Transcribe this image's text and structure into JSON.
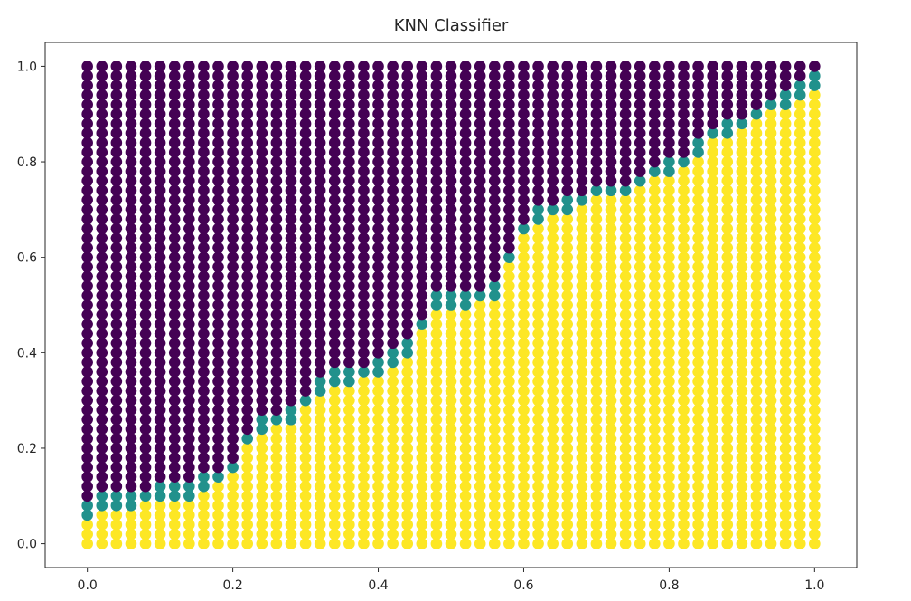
{
  "chart_data": {
    "type": "scatter",
    "title": "KNN Classifier",
    "xlabel": "",
    "ylabel": "",
    "xlim": [
      -0.058,
      1.058
    ],
    "ylim": [
      -0.05,
      1.05
    ],
    "xticks": [
      "0.0",
      "0.2",
      "0.4",
      "0.6",
      "0.8",
      "1.0"
    ],
    "yticks": [
      "0.0",
      "0.2",
      "0.4",
      "0.6",
      "0.8",
      "1.0"
    ],
    "grid": false,
    "legend": "none",
    "grid_points": {
      "x_start": 0.0,
      "x_end": 1.0,
      "x_count": 51,
      "y_start": 0.0,
      "y_end": 1.0,
      "y_count": 51
    },
    "class_colors": {
      "class_0": "#440154",
      "class_1": "#fde725",
      "boundary_blend": "#21918c"
    },
    "decision_boundary": {
      "x": [
        0.0,
        0.02,
        0.06,
        0.08,
        0.1,
        0.14,
        0.16,
        0.2,
        0.22,
        0.24,
        0.28,
        0.32,
        0.34,
        0.36,
        0.4,
        0.44,
        0.46,
        0.48,
        0.52,
        0.56,
        0.58,
        0.6,
        0.62,
        0.66,
        0.7,
        0.74,
        0.76,
        0.8,
        0.82,
        0.86,
        0.88,
        0.92,
        0.96,
        1.0
      ],
      "y": [
        0.07,
        0.09,
        0.09,
        0.1,
        0.11,
        0.11,
        0.13,
        0.16,
        0.22,
        0.25,
        0.27,
        0.33,
        0.35,
        0.35,
        0.37,
        0.41,
        0.46,
        0.51,
        0.51,
        0.53,
        0.6,
        0.66,
        0.69,
        0.71,
        0.74,
        0.74,
        0.76,
        0.79,
        0.8,
        0.86,
        0.87,
        0.9,
        0.93,
        0.97
      ]
    }
  }
}
